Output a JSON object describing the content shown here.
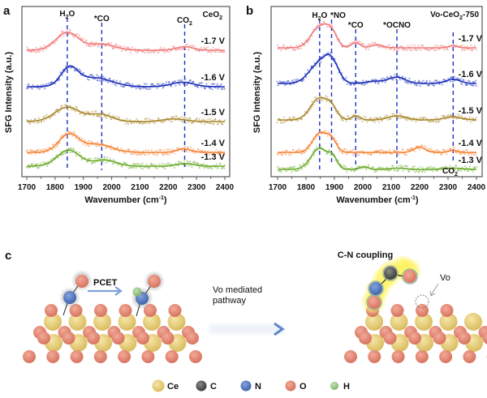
{
  "chart_data": [
    {
      "panel": "a",
      "type": "line",
      "title": "CeO2",
      "title_main": "CeO",
      "title_sub": "2",
      "xlabel": "Wavenumber (cm-1)",
      "xlabel_main": "Wavenumber (cm",
      "xlabel_sup": "-1",
      "xlabel_close": ")",
      "ylabel": "SFG Intensity (a.u.)",
      "xlim": [
        1700,
        2400
      ],
      "xticks": [
        "1700",
        "1800",
        "1900",
        "2000",
        "2100",
        "2200",
        "2300",
        "2400"
      ],
      "grid": false,
      "markers": [
        {
          "label": "H2O",
          "main": "H",
          "sub": "2",
          "tail": "O",
          "x": 1843
        },
        {
          "label": "*CO",
          "main": "*CO",
          "sub": "",
          "tail": "",
          "x": 1965
        },
        {
          "label": "CO2",
          "main": "CO",
          "sub": "2",
          "tail": "",
          "x": 2258
        }
      ],
      "series": [
        {
          "name": "-1.7 V",
          "color": "#f07878",
          "peaks": [
            [
              1843,
              1.0,
              40
            ],
            [
              1965,
              0.35,
              45
            ],
            [
              2258,
              0.2,
              30
            ]
          ]
        },
        {
          "name": "-1.6 V",
          "color": "#1a2fb8",
          "peaks": [
            [
              1850,
              1.0,
              30
            ],
            [
              1940,
              0.5,
              60
            ],
            [
              2250,
              0.25,
              40
            ]
          ]
        },
        {
          "name": "-1.5 V",
          "color": "#a8862a",
          "peaks": [
            [
              1843,
              0.8,
              45
            ],
            [
              1960,
              0.4,
              40
            ],
            [
              2220,
              0.15,
              40
            ]
          ]
        },
        {
          "name": "-1.4 V",
          "color": "#f58030",
          "peaks": [
            [
              1848,
              1.0,
              35
            ],
            [
              1950,
              0.45,
              50
            ],
            [
              2255,
              0.2,
              25
            ]
          ]
        },
        {
          "name": "-1.3 V",
          "color": "#6aaa28",
          "peaks": [
            [
              1848,
              0.9,
              40
            ],
            [
              1975,
              0.35,
              40
            ],
            [
              2260,
              0.15,
              30
            ]
          ]
        }
      ]
    },
    {
      "panel": "b",
      "type": "line",
      "title": "Vo-CeO2-750",
      "title_main": "Vo-CeO",
      "title_sub": "2",
      "title_tail": "-750",
      "xlabel": "Wavenumber (cm-1)",
      "xlabel_main": "Wavenumber (cm",
      "xlabel_sup": "-1",
      "xlabel_close": ")",
      "ylabel": "SFG Intensity (a.u.)",
      "xlim": [
        1700,
        2400
      ],
      "xticks": [
        "1700",
        "1800",
        "1900",
        "2000",
        "2100",
        "2200",
        "2300",
        "2400"
      ],
      "grid": false,
      "markers": [
        {
          "label": "H2O",
          "main": "H",
          "sub": "2",
          "tail": "O",
          "x": 1848
        },
        {
          "label": "*NO",
          "main": "*NO",
          "sub": "",
          "tail": "",
          "x": 1890
        },
        {
          "label": "*CO",
          "main": "*CO",
          "sub": "",
          "tail": "",
          "x": 1975
        },
        {
          "label": "*OCNO",
          "main": "*OCNO",
          "sub": "",
          "tail": "",
          "x": 2120
        },
        {
          "label": "CO2",
          "main": "CO",
          "sub": "2",
          "tail": "",
          "x": 2318
        }
      ],
      "series": [
        {
          "name": "-1.7 V",
          "color": "#f07878",
          "peaks": [
            [
              1848,
              1.0,
              30
            ],
            [
              1890,
              0.6,
              20
            ],
            [
              1975,
              0.25,
              15
            ],
            [
              2050,
              0.15,
              20
            ],
            [
              2318,
              0.1,
              15
            ]
          ]
        },
        {
          "name": "-1.6 V",
          "color": "#1a2fb8",
          "peaks": [
            [
              1845,
              0.9,
              35
            ],
            [
              1890,
              0.9,
              25
            ],
            [
              2040,
              0.1,
              30
            ],
            [
              2120,
              0.3,
              30
            ],
            [
              2318,
              0.2,
              25
            ]
          ]
        },
        {
          "name": "-1.5 V",
          "color": "#a8862a",
          "peaks": [
            [
              1845,
              1.0,
              30
            ],
            [
              1890,
              0.5,
              20
            ],
            [
              1975,
              0.2,
              15
            ],
            [
              2120,
              0.2,
              30
            ],
            [
              2318,
              0.15,
              30
            ]
          ]
        },
        {
          "name": "-1.4 V",
          "color": "#f58030",
          "peaks": [
            [
              1848,
              0.9,
              25
            ],
            [
              1890,
              0.55,
              18
            ],
            [
              2200,
              0.25,
              20
            ],
            [
              2318,
              0.1,
              15
            ]
          ]
        },
        {
          "name": "-1.3 V",
          "color": "#6aaa28",
          "peaks": [
            [
              1848,
              1.0,
              30
            ],
            [
              1895,
              0.45,
              15
            ],
            [
              2005,
              0.12,
              15
            ],
            [
              2120,
              0.06,
              30
            ],
            [
              2318,
              0.06,
              30
            ]
          ]
        }
      ],
      "annotation_bottom": {
        "main": "CO",
        "sub": "2"
      }
    }
  ],
  "panel_labels": {
    "a": "a",
    "b": "b",
    "c": "c"
  },
  "schematic": {
    "pcet_label": "PCET",
    "pathway_label_line1": "Vo mediated",
    "pathway_label_line2": "pathway",
    "cn_label": "C-N coupling",
    "vo_label": "Vo"
  },
  "legend": [
    {
      "label": "Ce",
      "color": "#e8cf78"
    },
    {
      "label": "C",
      "color": "#5a5a5a"
    },
    {
      "label": "N",
      "color": "#5b7fc4"
    },
    {
      "label": "O",
      "color": "#e38a78"
    },
    {
      "label": "H",
      "color": "#9cc88a"
    }
  ],
  "marker_line_color": "#1a2fd0"
}
